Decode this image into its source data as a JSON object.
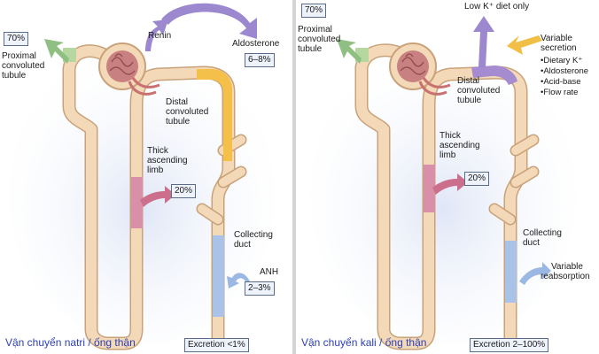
{
  "colors": {
    "tubule": "#f3d9b8",
    "tubule_edge": "#c9a27a",
    "proximal_segment": "#b7d7a0",
    "thick_ascending_segment": "#d98fa8",
    "distal_segment_left": "#f4c04a",
    "distal_segment_right": "#a58bd0",
    "collecting_segment": "#a9c3e8",
    "glomerulus": "#c98080",
    "arrow_green": "#8fbf83",
    "arrow_purple": "#9b88cf",
    "arrow_pink": "#cc6f8c",
    "arrow_blue": "#9ab8e3",
    "arrow_yellow": "#f1bf45",
    "caption": "#2b3fb5"
  },
  "sodium_panel": {
    "proximal_percent": "70%",
    "proximal_label": [
      "Proximal",
      "convoluted",
      "tubule"
    ],
    "renin_label": "Renin",
    "aldosterone_label": "Aldosterone",
    "aldosterone_percent": "6–8%",
    "distal_label": [
      "Distal",
      "convoluted",
      "tubule"
    ],
    "thick_label": [
      "Thick",
      "ascending",
      "limb"
    ],
    "thick_percent": "20%",
    "collecting_label": [
      "Collecting",
      "duct"
    ],
    "anh_label": "ANH",
    "anh_percent": "2–3%",
    "excretion": "Excretion <1%",
    "caption": "Vận chuyển natri / ống thận"
  },
  "potassium_panel": {
    "proximal_percent": "70%",
    "proximal_label": [
      "Proximal",
      "convoluted",
      "tubule"
    ],
    "low_k_label": "Low K⁺ diet only",
    "variable_secretion_label": [
      "Variable",
      "secretion"
    ],
    "secretion_factors": [
      "Dietary K⁺",
      "Aldosterone",
      "Acid-base",
      "Flow rate"
    ],
    "distal_label": [
      "Distal",
      "convoluted",
      "tubule"
    ],
    "thick_label": [
      "Thick",
      "ascending",
      "limb"
    ],
    "thick_percent": "20%",
    "collecting_label": [
      "Collecting",
      "duct"
    ],
    "variable_reabsorption_label": [
      "Variable",
      "reabsorption"
    ],
    "excretion": "Excretion 2–100%",
    "caption": "Vận chuyển kali / ống thận"
  }
}
